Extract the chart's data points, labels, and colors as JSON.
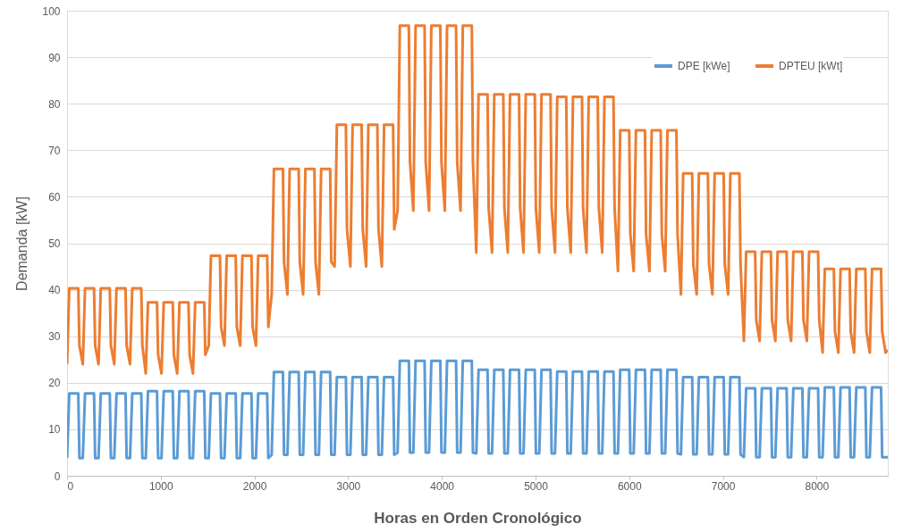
{
  "chart_data": {
    "type": "line",
    "xlabel": "Horas en Orden Cronológico",
    "ylabel": "Demanda [kW]",
    "xlim": [
      0,
      8760
    ],
    "xticks": [
      0,
      1000,
      2000,
      3000,
      4000,
      5000,
      6000,
      7000,
      8000
    ],
    "ylim": [
      0,
      100
    ],
    "yticks": [
      0,
      10,
      20,
      30,
      40,
      50,
      60,
      70,
      80,
      90,
      100
    ],
    "grid": "y",
    "legend": "top right",
    "marker": "none",
    "line_style": "solid",
    "x": [
      0,
      24,
      120,
      132,
      168,
      192,
      288,
      300,
      336,
      360,
      456,
      468,
      504,
      528,
      624,
      636,
      672,
      696,
      792,
      804,
      840,
      864,
      960,
      972,
      1008,
      1032,
      1128,
      1140,
      1176,
      1200,
      1296,
      1308,
      1344,
      1368,
      1464,
      1476,
      1512,
      1536,
      1632,
      1644,
      1680,
      1704,
      1800,
      1812,
      1848,
      1872,
      1968,
      1980,
      2016,
      2040,
      2136,
      2148,
      2184,
      2208,
      2304,
      2316,
      2352,
      2376,
      2472,
      2484,
      2520,
      2544,
      2640,
      2652,
      2688,
      2712,
      2808,
      2820,
      2856,
      2880,
      2976,
      2988,
      3024,
      3048,
      3144,
      3156,
      3192,
      3216,
      3312,
      3324,
      3360,
      3384,
      3480,
      3492,
      3528,
      3552,
      3648,
      3660,
      3696,
      3720,
      3816,
      3828,
      3864,
      3888,
      3984,
      3996,
      4032,
      4056,
      4152,
      4164,
      4200,
      4224,
      4320,
      4332,
      4368,
      4392,
      4488,
      4500,
      4536,
      4560,
      4656,
      4668,
      4704,
      4728,
      4824,
      4836,
      4872,
      4896,
      4992,
      5004,
      5040,
      5064,
      5160,
      5172,
      5208,
      5232,
      5328,
      5340,
      5376,
      5400,
      5496,
      5508,
      5544,
      5568,
      5664,
      5676,
      5712,
      5736,
      5832,
      5844,
      5880,
      5904,
      6000,
      6012,
      6048,
      6072,
      6168,
      6180,
      6216,
      6240,
      6336,
      6348,
      6384,
      6408,
      6504,
      6516,
      6552,
      6576,
      6672,
      6684,
      6720,
      6744,
      6840,
      6852,
      6888,
      6912,
      7008,
      7020,
      7056,
      7080,
      7176,
      7188,
      7224,
      7248,
      7344,
      7356,
      7392,
      7416,
      7512,
      7524,
      7560,
      7584,
      7680,
      7692,
      7728,
      7752,
      7848,
      7860,
      7896,
      7920,
      8016,
      8028,
      8064,
      8088,
      8184,
      8196,
      8232,
      8256,
      8352,
      8364,
      8400,
      8424,
      8520,
      8532,
      8568,
      8592,
      8688,
      8700,
      8736,
      8760
    ],
    "series": [
      {
        "name": "DPE [kWe]",
        "color": "#5b9bd5",
        "values": [
          3.8,
          17.7,
          17.7,
          3.8,
          3.8,
          17.7,
          17.7,
          3.8,
          3.8,
          17.7,
          17.7,
          3.8,
          3.8,
          17.7,
          17.7,
          3.8,
          3.8,
          17.7,
          17.7,
          3.8,
          3.8,
          18.2,
          18.2,
          3.8,
          3.8,
          18.2,
          18.2,
          3.8,
          3.8,
          18.2,
          18.2,
          3.8,
          3.8,
          18.2,
          18.2,
          3.8,
          3.8,
          17.7,
          17.7,
          3.8,
          3.8,
          17.7,
          17.7,
          3.8,
          3.8,
          17.7,
          17.7,
          3.8,
          3.8,
          17.7,
          17.7,
          3.8,
          4.5,
          22.3,
          22.3,
          4.5,
          4.5,
          22.3,
          22.3,
          4.5,
          4.5,
          22.3,
          22.3,
          4.5,
          4.5,
          22.3,
          22.3,
          4.5,
          4.5,
          21.2,
          21.2,
          4.5,
          4.5,
          21.2,
          21.2,
          4.5,
          4.5,
          21.2,
          21.2,
          4.5,
          4.5,
          21.2,
          21.2,
          4.5,
          5,
          24.7,
          24.7,
          5,
          5,
          24.7,
          24.7,
          5,
          5,
          24.7,
          24.7,
          5,
          5,
          24.7,
          24.7,
          5,
          5,
          24.7,
          24.7,
          5,
          4.8,
          22.8,
          22.8,
          4.8,
          4.8,
          22.8,
          22.8,
          4.8,
          4.8,
          22.8,
          22.8,
          4.8,
          4.8,
          22.8,
          22.8,
          4.8,
          4.8,
          22.8,
          22.8,
          4.8,
          4.8,
          22.4,
          22.4,
          4.8,
          4.8,
          22.4,
          22.4,
          4.8,
          4.8,
          22.4,
          22.4,
          4.8,
          4.8,
          22.4,
          22.4,
          4.8,
          4.8,
          22.8,
          22.8,
          4.8,
          4.8,
          22.8,
          22.8,
          4.8,
          4.8,
          22.8,
          22.8,
          4.8,
          4.8,
          22.8,
          22.8,
          4.8,
          4.6,
          21.2,
          21.2,
          4.6,
          4.6,
          21.2,
          21.2,
          4.6,
          4.6,
          21.2,
          21.2,
          4.6,
          4.6,
          21.2,
          21.2,
          4.6,
          4,
          18.8,
          18.8,
          4,
          4,
          18.8,
          18.8,
          4,
          4,
          18.8,
          18.8,
          4,
          4,
          18.8,
          18.8,
          4,
          4,
          18.8,
          18.8,
          4,
          4,
          19,
          19,
          4,
          4,
          19,
          19,
          4,
          4,
          19,
          19,
          4,
          4,
          19,
          19,
          4,
          4,
          4
        ]
      },
      {
        "name": "DPTEU [kWt]",
        "color": "#ed7d31",
        "values": [
          24,
          40.3,
          40.3,
          28,
          24,
          40.3,
          40.3,
          28,
          24,
          40.3,
          40.3,
          28,
          24,
          40.3,
          40.3,
          28,
          24,
          40.3,
          40.3,
          28,
          22,
          37.3,
          37.3,
          26,
          22,
          37.3,
          37.3,
          26,
          22,
          37.3,
          37.3,
          26,
          22,
          37.3,
          37.3,
          26,
          28,
          47.3,
          47.3,
          32,
          28,
          47.3,
          47.3,
          32,
          28,
          47.3,
          47.3,
          32,
          28,
          47.3,
          47.3,
          32,
          39,
          66,
          66,
          46,
          39,
          66,
          66,
          46,
          39,
          66,
          66,
          46,
          39,
          66,
          66,
          46,
          45,
          75.5,
          75.5,
          53,
          45,
          75.5,
          75.5,
          53,
          45,
          75.5,
          75.5,
          53,
          45,
          75.5,
          75.5,
          53,
          57,
          96.8,
          96.8,
          67.5,
          57,
          96.8,
          96.8,
          67.5,
          57,
          96.8,
          96.8,
          67.5,
          57,
          96.8,
          96.8,
          67.5,
          57,
          96.8,
          96.8,
          67.5,
          48,
          82,
          82,
          57.5,
          48,
          82,
          82,
          57.5,
          48,
          82,
          82,
          57.5,
          48,
          82,
          82,
          57.5,
          48,
          82,
          82,
          57.5,
          48,
          81.5,
          81.5,
          57.5,
          48,
          81.5,
          81.5,
          57.5,
          48,
          81.5,
          81.5,
          57.5,
          48,
          81.5,
          81.5,
          57.5,
          44,
          74.3,
          74.3,
          52,
          44,
          74.3,
          74.3,
          52,
          44,
          74.3,
          74.3,
          52,
          44,
          74.3,
          74.3,
          52,
          39,
          65,
          65,
          45.5,
          39,
          65,
          65,
          45.5,
          39,
          65,
          65,
          45.5,
          39,
          65,
          65,
          45.5,
          29,
          48.2,
          48.2,
          33.5,
          29,
          48.2,
          48.2,
          33.5,
          29,
          48.2,
          48.2,
          33.5,
          29,
          48.2,
          48.2,
          33.5,
          29,
          48.2,
          48.2,
          33.5,
          26.5,
          44.5,
          44.5,
          31,
          26.5,
          44.5,
          44.5,
          31,
          26.5,
          44.5,
          44.5,
          31,
          26.5,
          44.5,
          44.5,
          31,
          26.5,
          27
        ]
      }
    ]
  }
}
